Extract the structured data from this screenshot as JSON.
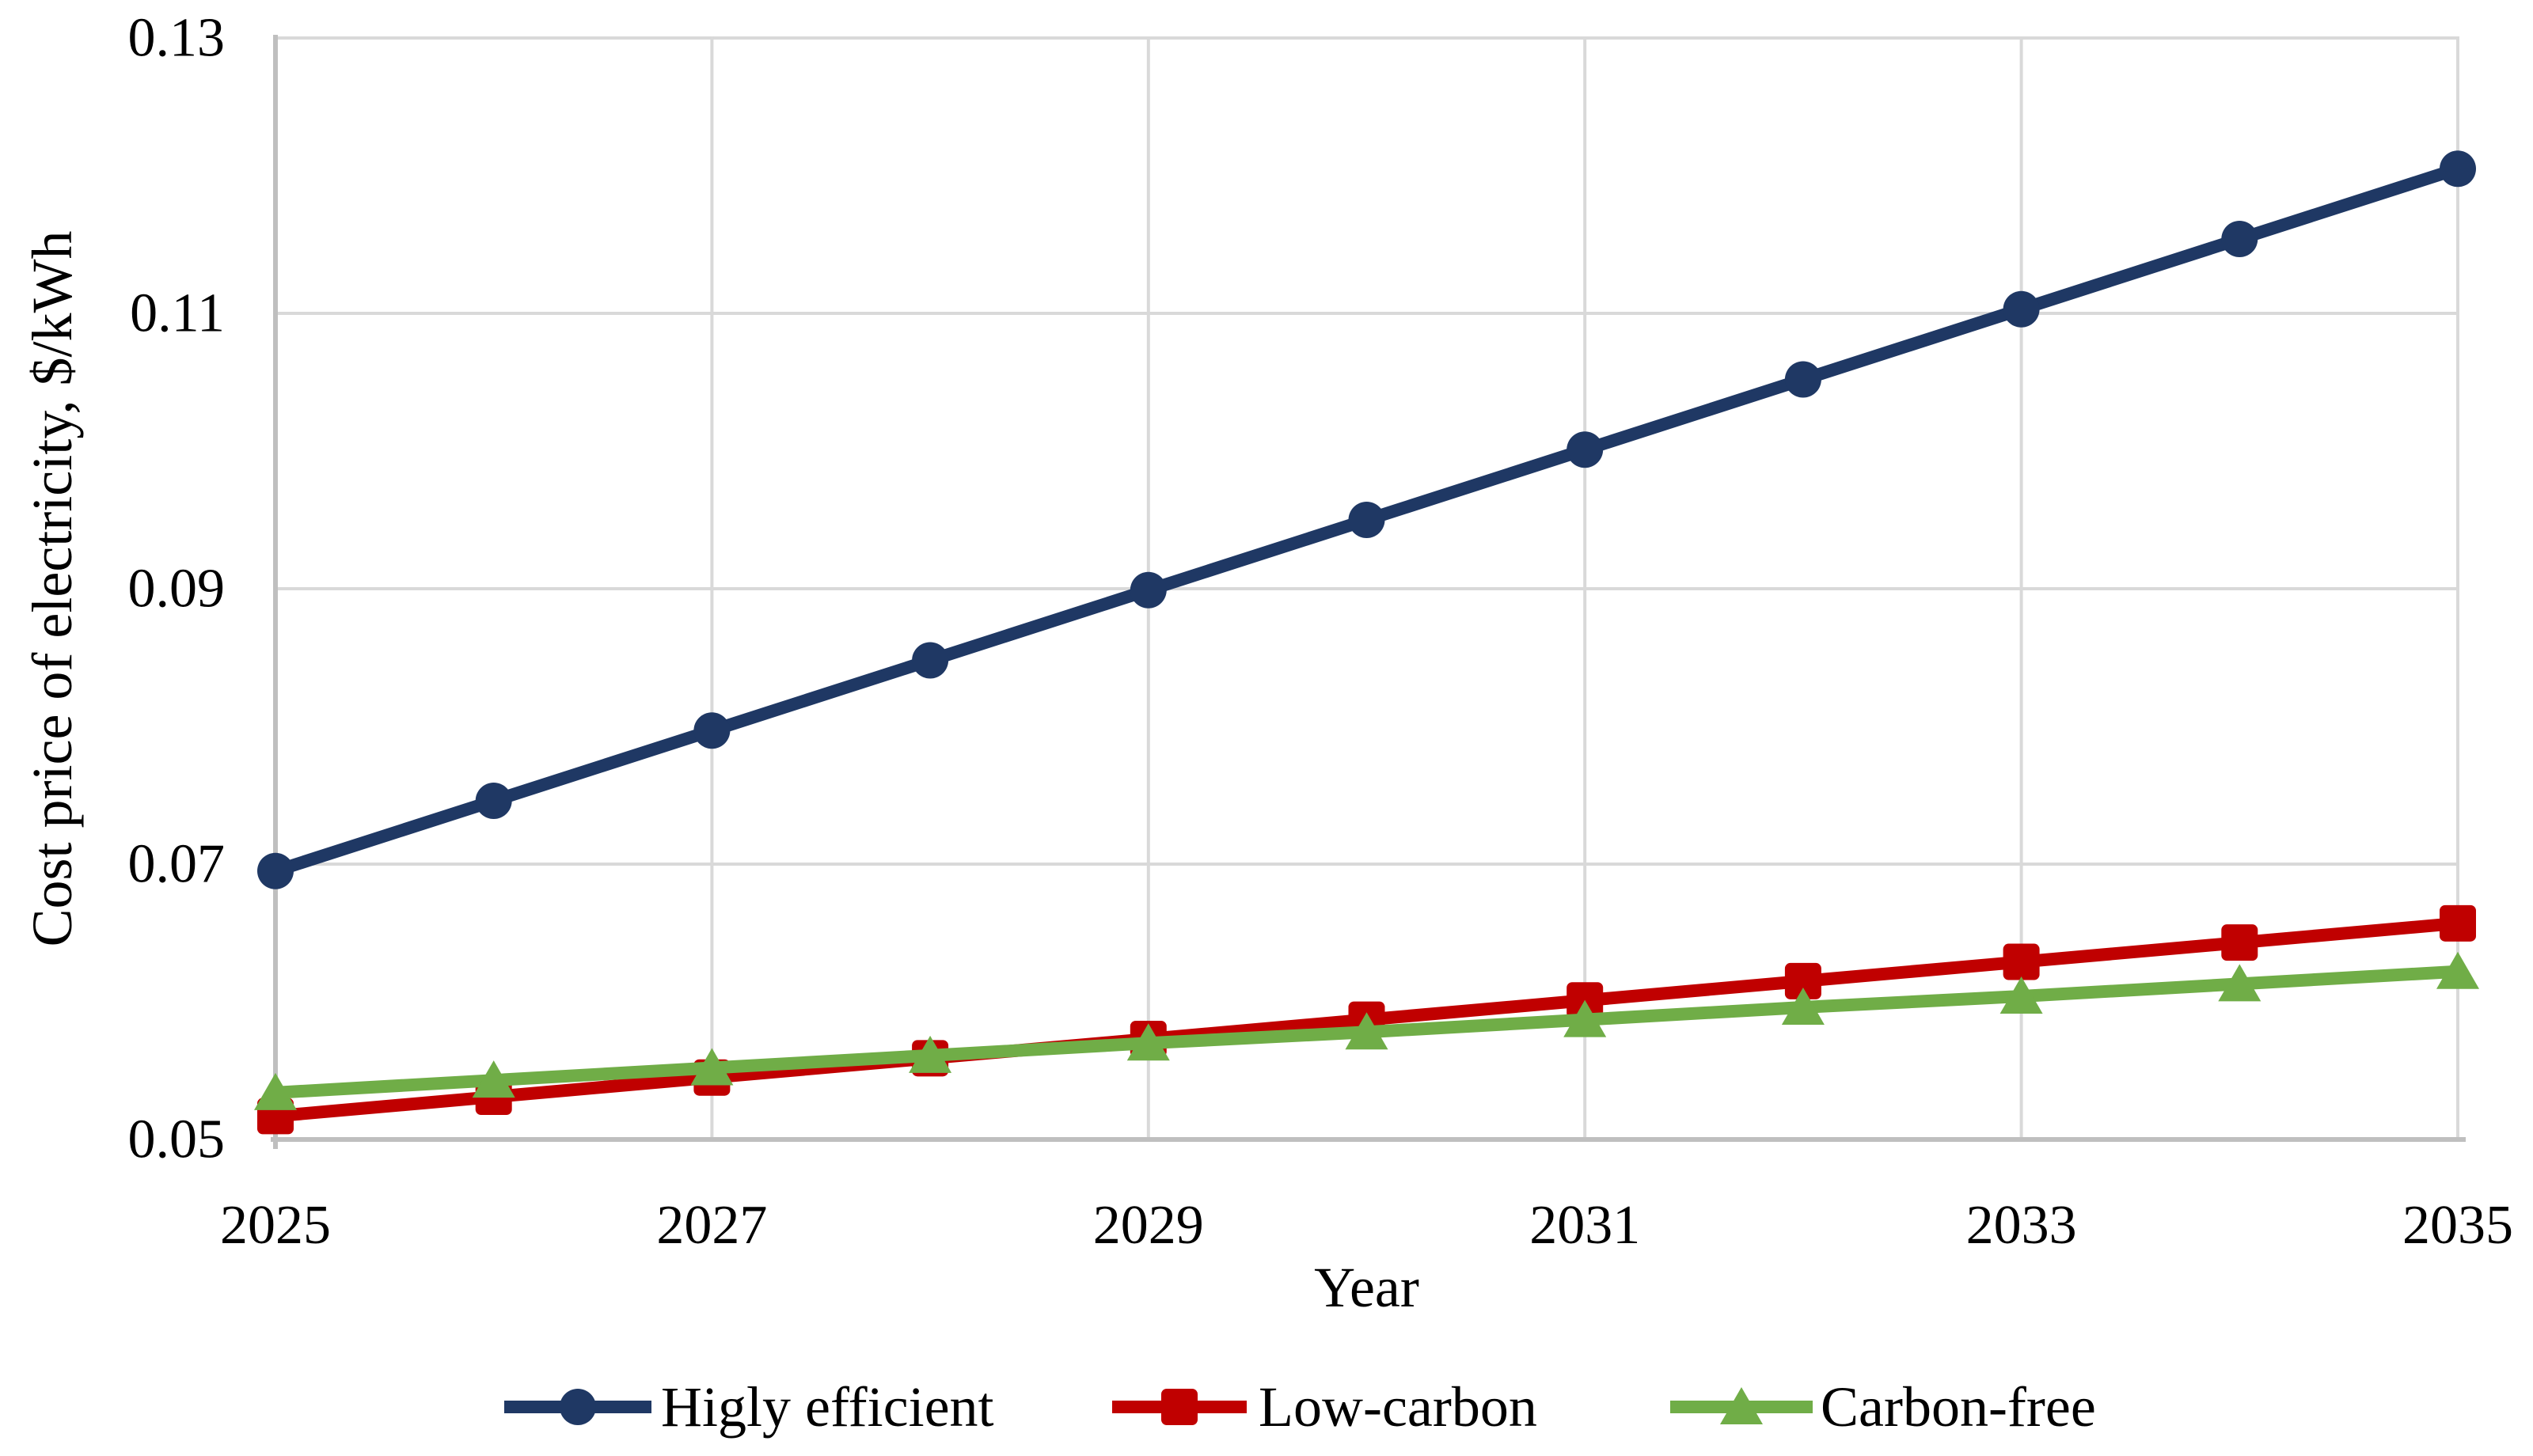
{
  "chart_data": {
    "type": "line",
    "title": "",
    "xlabel": "Year",
    "ylabel": "Cost price of electricity, $/kWh",
    "xlim": [
      2025,
      2035
    ],
    "ylim": [
      0.05,
      0.13
    ],
    "grid": true,
    "legend_position": "bottom",
    "x": [
      2025,
      2026,
      2027,
      2028,
      2029,
      2030,
      2031,
      2032,
      2033,
      2034,
      2035
    ],
    "x_tick_labels": [
      "2025",
      "2027",
      "2029",
      "2031",
      "2033",
      "2035"
    ],
    "y_ticks": [
      0.05,
      0.07,
      0.09,
      0.11,
      0.13
    ],
    "y_tick_labels": [
      "0.05",
      "0.07",
      "0.09",
      "0.11",
      "0.13"
    ],
    "series": [
      {
        "name": "Higly efficient",
        "marker": "circle",
        "color": "#1F3864",
        "values": [
          0.0695,
          0.0746,
          0.0797,
          0.0848,
          0.0899,
          0.095,
          0.1001,
          0.1052,
          0.1103,
          0.1154,
          0.1205
        ]
      },
      {
        "name": "Low-carbon",
        "marker": "square",
        "color": "#C00000",
        "values": [
          0.0517,
          0.0531,
          0.0545,
          0.0559,
          0.0573,
          0.0587,
          0.0601,
          0.0615,
          0.0629,
          0.0643,
          0.0657
        ]
      },
      {
        "name": "Carbon-free",
        "marker": "triangle",
        "color": "#70AD47",
        "values": [
          0.0534,
          0.0543,
          0.0552,
          0.0561,
          0.057,
          0.0578,
          0.0587,
          0.0596,
          0.0604,
          0.0613,
          0.0622
        ]
      }
    ],
    "colors": {
      "gridline": "#D9D9D9",
      "axis_line": "#BFBFBF",
      "text": "#000000",
      "background": "#FFFFFF"
    }
  }
}
